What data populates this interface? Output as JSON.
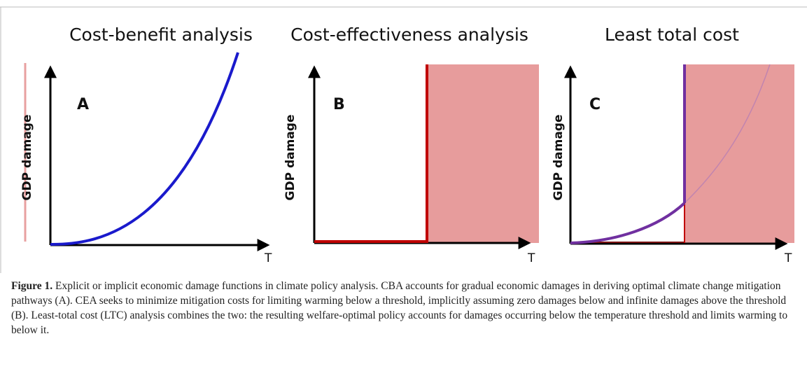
{
  "panels": [
    {
      "title": "Cost-benefit analysis",
      "letter": "A",
      "y_label": "GDP damage",
      "x_label": "T"
    },
    {
      "title": "Cost-effectiveness analysis",
      "letter": "B",
      "y_label": "GDP damage",
      "x_label": "T"
    },
    {
      "title": "Least total cost",
      "letter": "C",
      "y_label": "GDP damage",
      "x_label": "T"
    }
  ],
  "caption": {
    "label": "Figure 1.",
    "text": "Explicit or implicit economic damage functions in climate policy analysis. CBA accounts for gradual economic damages in deriving optimal climate change mitigation pathways (A). CEA seeks to minimize mitigation costs for limiting warming below a threshold, implicitly assuming zero damages below and infinite damages above the threshold (B). Least-total cost (LTC) analysis combines the two: the resulting welfare-optimal policy accounts for damages occurring below the temperature threshold and limits warming to below it."
  }
}
